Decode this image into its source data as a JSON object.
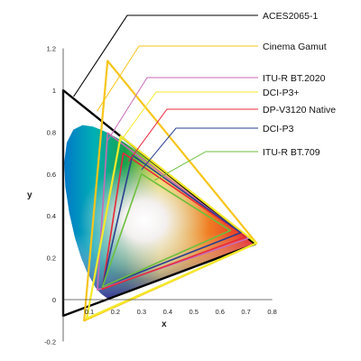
{
  "chart_data": {
    "type": "scatter",
    "subtype": "cie-1931-chromaticity-diagram",
    "xlabel": "x",
    "ylabel": "y",
    "xlim": [
      0,
      0.8
    ],
    "ylim": [
      -0.2,
      1.2
    ],
    "x_ticks": [
      "0.1",
      "0.2",
      "0.3",
      "0.4",
      "0.5",
      "0.6",
      "0.7",
      "0.8"
    ],
    "y_ticks": [
      "-0.2",
      "0",
      "0.2",
      "0.4",
      "0.6",
      "0.8",
      "1",
      "1.2"
    ],
    "grid": false,
    "legend_position": "right",
    "series": [
      {
        "name": "ACES2065-1",
        "color": "#000000",
        "points": [
          [
            0.7347,
            0.2653
          ],
          [
            0.0,
            1.0
          ],
          [
            0.0001,
            -0.077
          ]
        ]
      },
      {
        "name": "Cinema Gamut",
        "color": "#f7c51b",
        "points": [
          [
            0.74,
            0.27
          ],
          [
            0.17,
            1.14
          ],
          [
            0.08,
            -0.1
          ]
        ]
      },
      {
        "name": "ITU-R BT.2020",
        "color": "#c86bb6",
        "points": [
          [
            0.708,
            0.292
          ],
          [
            0.17,
            0.797
          ],
          [
            0.131,
            0.046
          ]
        ]
      },
      {
        "name": "DCI-P3+",
        "color": "#f4ea2b",
        "points": [
          [
            0.74,
            0.27
          ],
          [
            0.22,
            0.78
          ],
          [
            0.09,
            -0.09
          ]
        ]
      },
      {
        "name": "DP-V3120 Native",
        "color": "#e8283a",
        "points": [
          [
            0.7,
            0.3
          ],
          [
            0.23,
            0.7
          ],
          [
            0.15,
            0.05
          ]
        ]
      },
      {
        "name": "DCI-P3",
        "color": "#2a3f8f",
        "points": [
          [
            0.68,
            0.32
          ],
          [
            0.265,
            0.69
          ],
          [
            0.15,
            0.06
          ]
        ]
      },
      {
        "name": "ITU-R BT.709",
        "color": "#6cbf3d",
        "points": [
          [
            0.64,
            0.33
          ],
          [
            0.3,
            0.6
          ],
          [
            0.15,
            0.06
          ]
        ]
      }
    ]
  }
}
